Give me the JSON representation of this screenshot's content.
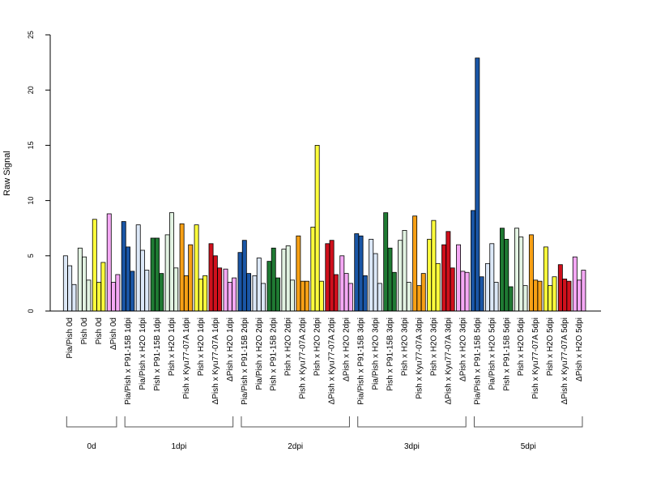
{
  "chart_data": {
    "type": "bar",
    "ylabel": "Raw Signal",
    "ylim": [
      0,
      25
    ],
    "yticks": [
      0,
      5,
      10,
      15,
      20,
      25
    ],
    "grid": false,
    "legend": "none",
    "groups": [
      {
        "label": "0d",
        "categories": [
          {
            "label": "Pia/Pish 0d",
            "color": "#dce8f8",
            "values": [
              5.0,
              4.1,
              2.4
            ]
          },
          {
            "label": "Pish 0d",
            "color": "#e2f3e2",
            "values": [
              5.7,
              4.9,
              2.8
            ]
          },
          {
            "label": "Pish 0d",
            "color": "#ffff3c",
            "values": [
              8.3,
              2.6,
              4.4
            ]
          },
          {
            "label": "ΔPish 0d",
            "color": "#f5a8f5",
            "values": [
              8.8,
              2.6,
              3.3
            ]
          }
        ]
      },
      {
        "label": "1dpi",
        "categories": [
          {
            "label": "Pia/Pish x P91-15B 1dpi",
            "color": "#1a56a6",
            "values": [
              8.1,
              5.8,
              3.6
            ]
          },
          {
            "label": "Pia/Pish x H2O 1dpi",
            "color": "#dce8f8",
            "values": [
              7.8,
              5.5,
              3.7
            ]
          },
          {
            "label": "Pish x P91-15B 1dpi",
            "color": "#1f7a33",
            "values": [
              6.6,
              6.6,
              3.4
            ]
          },
          {
            "label": "Pish x H2O 1dpi",
            "color": "#e2f3e2",
            "values": [
              6.9,
              8.9,
              3.9
            ]
          },
          {
            "label": "Pish x Kyu77-07A 1dpi",
            "color": "#f7a015",
            "values": [
              7.9,
              3.2,
              6.0
            ]
          },
          {
            "label": "Pish x H2O 1dpi",
            "color": "#ffff3c",
            "values": [
              7.8,
              2.9,
              3.2
            ]
          },
          {
            "label": "ΔPish x Kyu77-07A 1dpi",
            "color": "#d0101c",
            "values": [
              6.1,
              5.0,
              3.9
            ]
          },
          {
            "label": "ΔPish x H2O 1dpi",
            "color": "#f5a8f5",
            "values": [
              3.8,
              2.6,
              3.0
            ]
          }
        ]
      },
      {
        "label": "2dpi",
        "categories": [
          {
            "label": "Pia/Pish x P91-15B 2dpi",
            "color": "#1a56a6",
            "values": [
              5.3,
              6.4,
              3.4
            ]
          },
          {
            "label": "Pia/Pish x H2O 2dpi",
            "color": "#dce8f8",
            "values": [
              3.2,
              4.8,
              2.5
            ]
          },
          {
            "label": "Pish x P91-15B 2dpi",
            "color": "#1f7a33",
            "values": [
              4.5,
              5.7,
              3.0
            ]
          },
          {
            "label": "Pish x H2O 2dpi",
            "color": "#e2f3e2",
            "values": [
              5.6,
              5.9,
              2.8
            ]
          },
          {
            "label": "Pish x Kyu77-07A 2dpi",
            "color": "#f7a015",
            "values": [
              6.8,
              2.7,
              2.7
            ]
          },
          {
            "label": "Pish x H2O 2dpi",
            "color": "#ffff3c",
            "values": [
              7.6,
              15.0,
              2.7
            ]
          },
          {
            "label": "ΔPish x Kyu77-07A 2dpi",
            "color": "#d0101c",
            "values": [
              6.1,
              6.4,
              3.3
            ]
          },
          {
            "label": "ΔPish x H2O 2dpi",
            "color": "#f5a8f5",
            "values": [
              5.0,
              3.4,
              2.5
            ]
          }
        ]
      },
      {
        "label": "3dpi",
        "categories": [
          {
            "label": "Pia/Pish x P91-15B 3dpi",
            "color": "#1a56a6",
            "values": [
              7.0,
              6.8,
              3.2
            ]
          },
          {
            "label": "Pia/Pish x H2O 3dpi",
            "color": "#dce8f8",
            "values": [
              6.5,
              5.2,
              2.5
            ]
          },
          {
            "label": "Pish x P91-15B 3dpi",
            "color": "#1f7a33",
            "values": [
              8.9,
              5.7,
              3.5
            ]
          },
          {
            "label": "Pish x H2O 3dpi",
            "color": "#e2f3e2",
            "values": [
              6.4,
              7.3,
              2.6
            ]
          },
          {
            "label": "Pish x Kyu77-07A 3dpi",
            "color": "#f7a015",
            "values": [
              8.6,
              2.3,
              3.4
            ]
          },
          {
            "label": "Pish x H2O 3dpi",
            "color": "#ffff3c",
            "values": [
              6.5,
              8.2,
              4.3
            ]
          },
          {
            "label": "ΔPish x Kyu77-07A 3dpi",
            "color": "#d0101c",
            "values": [
              6.0,
              7.2,
              3.9
            ]
          },
          {
            "label": "ΔPish x H2O 3dpi",
            "color": "#f5a8f5",
            "values": [
              6.0,
              3.6,
              3.5
            ]
          }
        ]
      },
      {
        "label": "5dpi",
        "categories": [
          {
            "label": "Pia/Pish x P91-15B 5dpi",
            "color": "#1a56a6",
            "values": [
              9.1,
              22.9,
              3.1
            ]
          },
          {
            "label": "Pia/Pish x H2O 5dpi",
            "color": "#dce8f8",
            "values": [
              4.3,
              6.1,
              2.6
            ]
          },
          {
            "label": "Pish x P91-15B 5dpi",
            "color": "#1f7a33",
            "values": [
              7.5,
              6.5,
              2.2
            ]
          },
          {
            "label": "Pish x H2O 5dpi",
            "color": "#e2f3e2",
            "values": [
              7.5,
              6.7,
              2.3
            ]
          },
          {
            "label": "Pish x Kyu77-07A 5dpi",
            "color": "#f7a015",
            "values": [
              6.9,
              2.8,
              2.7
            ]
          },
          {
            "label": "Pish x H2O 5dpi",
            "color": "#ffff3c",
            "values": [
              5.8,
              2.3,
              3.1
            ]
          },
          {
            "label": "ΔPish x Kyu77-07A 5dpi",
            "color": "#d0101c",
            "values": [
              4.2,
              2.9,
              2.7
            ]
          },
          {
            "label": "ΔPish x H2O 5dpi",
            "color": "#f5a8f5",
            "values": [
              4.9,
              2.8,
              3.7
            ]
          }
        ]
      }
    ]
  }
}
